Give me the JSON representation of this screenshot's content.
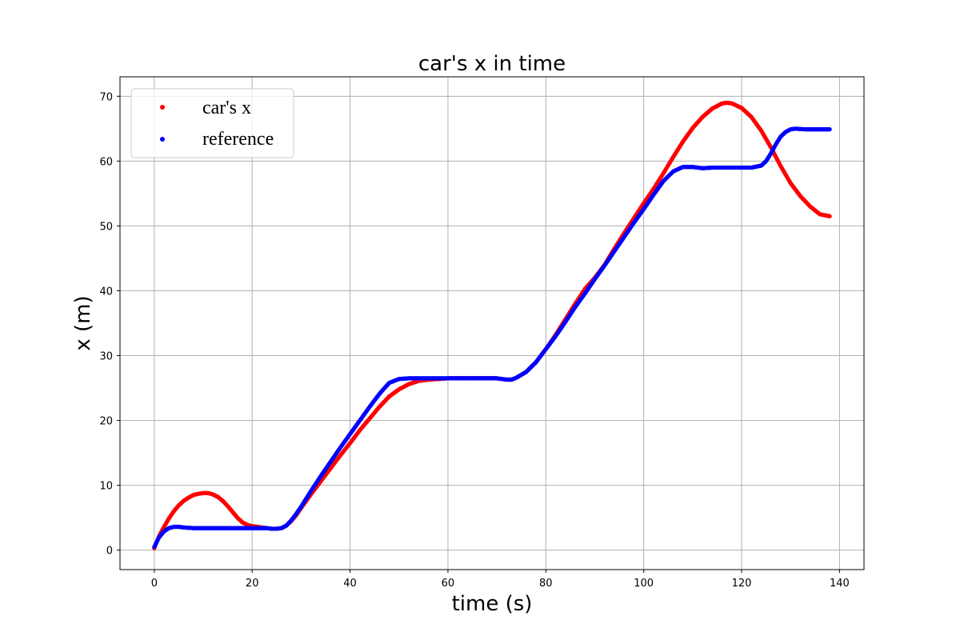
{
  "chart_data": {
    "type": "scatter",
    "title": "car's x in time",
    "xlabel": "time (s)",
    "ylabel": "x (m)",
    "xlim": [
      -7,
      145
    ],
    "ylim": [
      -3,
      73
    ],
    "xticks": [
      0,
      20,
      40,
      60,
      80,
      100,
      120,
      140
    ],
    "yticks": [
      0,
      10,
      20,
      30,
      40,
      50,
      60,
      70
    ],
    "grid": true,
    "legend_position": "top-left",
    "series": [
      {
        "name": "car's x",
        "color": "#ff0000",
        "points": [
          [
            0,
            0.3
          ],
          [
            1,
            2.2
          ],
          [
            2,
            3.6
          ],
          [
            3,
            4.9
          ],
          [
            4,
            6.0
          ],
          [
            5,
            6.9
          ],
          [
            6,
            7.6
          ],
          [
            7,
            8.1
          ],
          [
            8,
            8.5
          ],
          [
            9,
            8.7
          ],
          [
            10,
            8.8
          ],
          [
            11,
            8.8
          ],
          [
            12,
            8.6
          ],
          [
            13,
            8.2
          ],
          [
            14,
            7.6
          ],
          [
            15,
            6.8
          ],
          [
            16,
            5.9
          ],
          [
            17,
            5.0
          ],
          [
            18,
            4.3
          ],
          [
            19,
            3.9
          ],
          [
            20,
            3.7
          ],
          [
            21,
            3.6
          ],
          [
            22,
            3.5
          ],
          [
            23,
            3.4
          ],
          [
            24,
            3.3
          ],
          [
            25,
            3.3
          ],
          [
            26,
            3.4
          ],
          [
            27,
            3.8
          ],
          [
            28,
            4.5
          ],
          [
            29,
            5.4
          ],
          [
            30,
            6.5
          ],
          [
            32,
            8.6
          ],
          [
            34,
            10.6
          ],
          [
            36,
            12.6
          ],
          [
            38,
            14.6
          ],
          [
            40,
            16.5
          ],
          [
            42,
            18.5
          ],
          [
            44,
            20.3
          ],
          [
            46,
            22.1
          ],
          [
            48,
            23.7
          ],
          [
            50,
            24.8
          ],
          [
            52,
            25.6
          ],
          [
            54,
            26.1
          ],
          [
            56,
            26.3
          ],
          [
            58,
            26.4
          ],
          [
            60,
            26.5
          ],
          [
            65,
            26.5
          ],
          [
            70,
            26.5
          ],
          [
            72,
            26.3
          ],
          [
            73,
            26.3
          ],
          [
            74,
            26.6
          ],
          [
            76,
            27.5
          ],
          [
            78,
            29.0
          ],
          [
            80,
            31.0
          ],
          [
            82,
            33.2
          ],
          [
            84,
            35.6
          ],
          [
            86,
            38.0
          ],
          [
            88,
            40.3
          ],
          [
            90,
            42.0
          ],
          [
            92,
            44.0
          ],
          [
            94,
            46.5
          ],
          [
            96,
            48.9
          ],
          [
            98,
            51.2
          ],
          [
            100,
            53.5
          ],
          [
            102,
            55.7
          ],
          [
            104,
            58.1
          ],
          [
            106,
            60.6
          ],
          [
            108,
            63.0
          ],
          [
            110,
            65.1
          ],
          [
            112,
            66.8
          ],
          [
            114,
            68.1
          ],
          [
            116,
            68.9
          ],
          [
            117,
            69.0
          ],
          [
            118,
            68.9
          ],
          [
            120,
            68.2
          ],
          [
            122,
            66.8
          ],
          [
            124,
            64.7
          ],
          [
            126,
            62.1
          ],
          [
            128,
            59.2
          ],
          [
            130,
            56.6
          ],
          [
            132,
            54.6
          ],
          [
            134,
            53.0
          ],
          [
            136,
            51.8
          ],
          [
            138,
            51.5
          ]
        ]
      },
      {
        "name": "reference",
        "color": "#0000ff",
        "points": [
          [
            0,
            0.5
          ],
          [
            1,
            2.0
          ],
          [
            2,
            2.9
          ],
          [
            3,
            3.4
          ],
          [
            4,
            3.6
          ],
          [
            5,
            3.6
          ],
          [
            6,
            3.5
          ],
          [
            8,
            3.4
          ],
          [
            10,
            3.4
          ],
          [
            15,
            3.4
          ],
          [
            20,
            3.4
          ],
          [
            23,
            3.4
          ],
          [
            24,
            3.3
          ],
          [
            25,
            3.3
          ],
          [
            26,
            3.4
          ],
          [
            27,
            3.8
          ],
          [
            28,
            4.6
          ],
          [
            29,
            5.6
          ],
          [
            30,
            6.7
          ],
          [
            32,
            9.1
          ],
          [
            34,
            11.4
          ],
          [
            36,
            13.6
          ],
          [
            38,
            15.8
          ],
          [
            40,
            17.9
          ],
          [
            42,
            20.0
          ],
          [
            44,
            22.1
          ],
          [
            46,
            24.1
          ],
          [
            48,
            25.8
          ],
          [
            50,
            26.4
          ],
          [
            52,
            26.5
          ],
          [
            55,
            26.5
          ],
          [
            60,
            26.5
          ],
          [
            65,
            26.5
          ],
          [
            70,
            26.5
          ],
          [
            72,
            26.3
          ],
          [
            73,
            26.3
          ],
          [
            74,
            26.6
          ],
          [
            76,
            27.5
          ],
          [
            78,
            29.0
          ],
          [
            80,
            31.0
          ],
          [
            82,
            33.0
          ],
          [
            84,
            35.2
          ],
          [
            86,
            37.5
          ],
          [
            88,
            39.6
          ],
          [
            90,
            41.8
          ],
          [
            92,
            43.9
          ],
          [
            94,
            46.1
          ],
          [
            96,
            48.3
          ],
          [
            98,
            50.5
          ],
          [
            100,
            52.6
          ],
          [
            102,
            54.8
          ],
          [
            104,
            56.9
          ],
          [
            106,
            58.4
          ],
          [
            108,
            59.1
          ],
          [
            110,
            59.1
          ],
          [
            112,
            58.9
          ],
          [
            114,
            59.0
          ],
          [
            116,
            59.0
          ],
          [
            120,
            59.0
          ],
          [
            122,
            59.0
          ],
          [
            124,
            59.3
          ],
          [
            125,
            60.0
          ],
          [
            126,
            61.2
          ],
          [
            127,
            62.6
          ],
          [
            128,
            63.8
          ],
          [
            129,
            64.5
          ],
          [
            130,
            64.9
          ],
          [
            131,
            65.0
          ],
          [
            133,
            64.9
          ],
          [
            135,
            64.9
          ],
          [
            138,
            64.9
          ]
        ]
      }
    ]
  }
}
